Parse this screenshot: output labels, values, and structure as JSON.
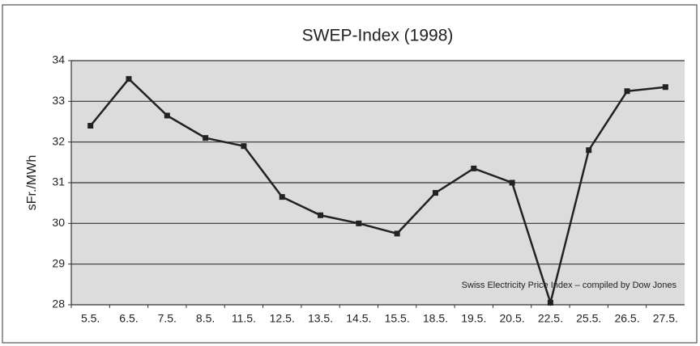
{
  "chart_data": {
    "type": "line",
    "title": "SWEP-Index (1998)",
    "y_label": "sFr./MWh",
    "annotation": "Swiss Electricity Price Index – compiled by Dow Jones",
    "categories": [
      "5.5.",
      "6.5.",
      "7.5.",
      "8.5.",
      "11.5.",
      "12.5.",
      "13.5.",
      "14.5.",
      "15.5.",
      "18.5.",
      "19.5.",
      "20.5.",
      "22.5.",
      "25.5.",
      "26.5.",
      "27.5."
    ],
    "values": [
      32.4,
      33.55,
      32.65,
      32.1,
      31.9,
      30.65,
      30.2,
      30.0,
      29.75,
      30.75,
      31.35,
      31.0,
      28.05,
      31.8,
      33.25,
      33.35
    ],
    "color": "#222222",
    "ylim": [
      28,
      34
    ],
    "yticks": [
      28,
      29,
      30,
      31,
      32,
      33,
      34
    ],
    "grid": true
  }
}
